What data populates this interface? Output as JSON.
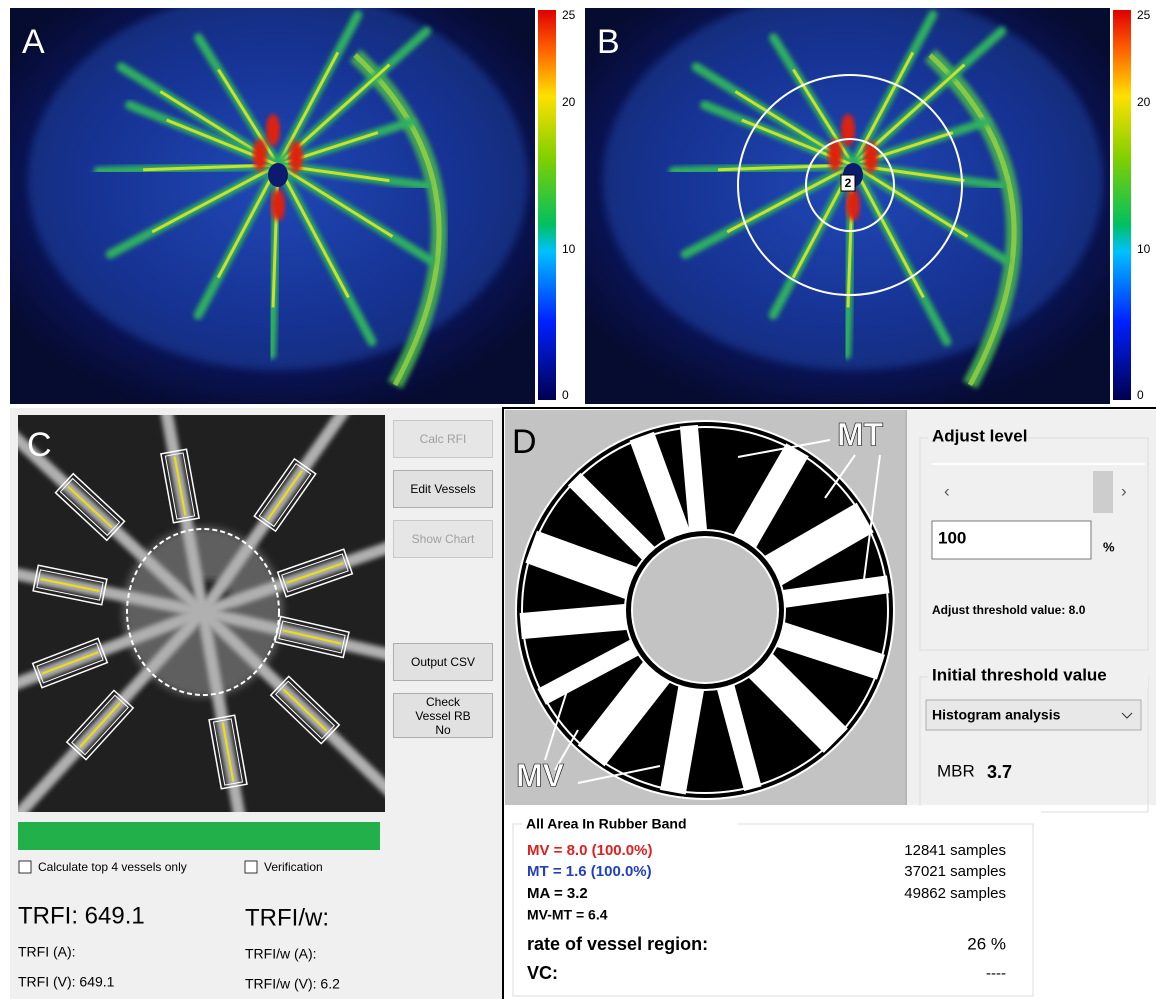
{
  "panel_a": {
    "label": "A",
    "colorbar_ticks": [
      "25",
      "20",
      "10",
      "0"
    ]
  },
  "panel_b": {
    "label": "B",
    "colorbar_ticks": [
      "25",
      "20",
      "10",
      "0"
    ],
    "region_label": "2"
  },
  "panel_c": {
    "label": "C",
    "buttons": [
      "Calc RFI",
      "Edit Vessels",
      "Show Chart",
      "Output CSV",
      "Check Vessel RB No"
    ],
    "checkboxes": [
      "Calculate top 4 vessels only",
      "Verification"
    ],
    "trfi": "TRFI: 649.1",
    "trfi_w": "TRFI/w:",
    "trfi_a": "TRFI (A):",
    "trfi_v": "TRFI (V): 649.1",
    "trfi_w_a": "TRFI/w (A):",
    "trfi_w_v": "TRFI/w (V): 6.2"
  },
  "panel_d": {
    "label": "D",
    "annotations": [
      "MT",
      "MV"
    ],
    "adjust_level": {
      "title": "Adjust level",
      "left": "‹",
      "right": "›",
      "value": "100",
      "unit": "%",
      "threshold": "Adjust threshold value: 8.0"
    },
    "initial_threshold": {
      "title": "Initial threshold value",
      "method": "Histogram analysis",
      "mbr_label": "MBR",
      "mbr_value": "3.7"
    },
    "results": {
      "title": "All Area In Rubber Band",
      "rows": [
        {
          "label": "MV = 8.0 (100.0%)",
          "samples": "12841 samples"
        },
        {
          "label": "MT = 1.6 (100.0%)",
          "samples": "37021 samples"
        },
        {
          "label": "MA = 3.2",
          "samples": "49862 samples"
        },
        {
          "label": "MV-MT = 6.4"
        }
      ],
      "rate": {
        "label": "rate of vessel region:",
        "value": "26 %"
      },
      "vc": {
        "label": "VC:",
        "value": "----"
      }
    }
  }
}
